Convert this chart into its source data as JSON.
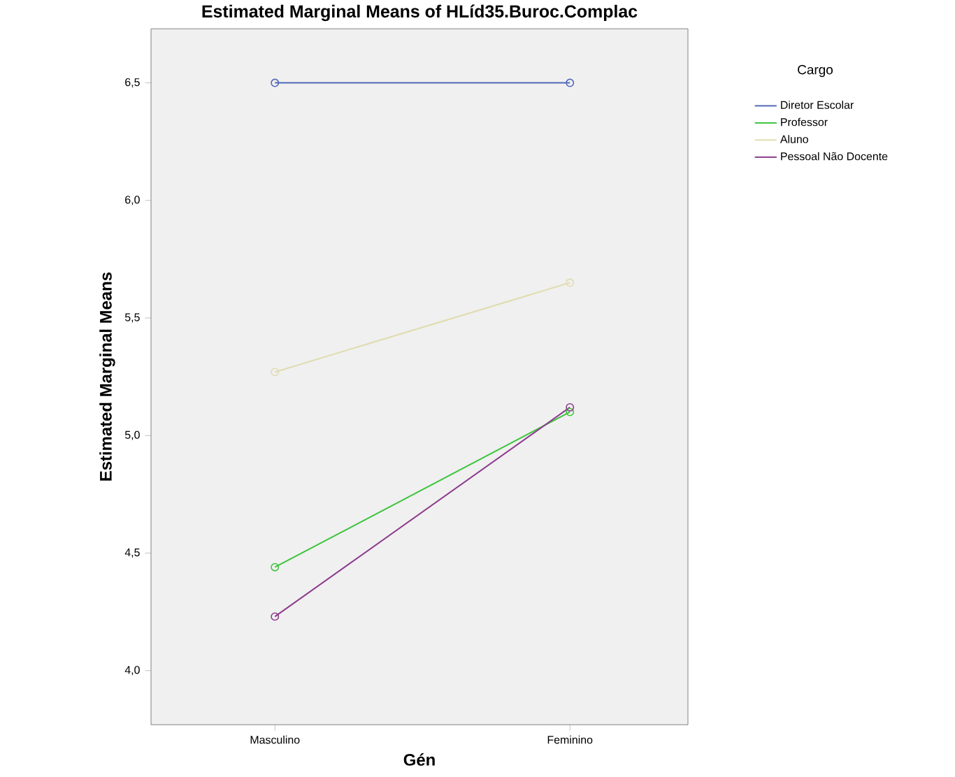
{
  "chart_data": {
    "type": "line",
    "title": "Estimated Marginal Means of HLíd35.Buroc.Complac",
    "xlabel": "Gén",
    "ylabel": "Estimated Marginal Means",
    "legend_title": "Cargo",
    "categories": [
      "Masculino",
      "Feminino"
    ],
    "series": [
      {
        "name": "Diretor Escolar",
        "color": "#5068b8",
        "values": [
          6.5,
          6.5
        ]
      },
      {
        "name": "Professor",
        "color": "#3cc43c",
        "values": [
          4.44,
          5.1
        ]
      },
      {
        "name": "Aluno",
        "color": "#e0dcb0",
        "values": [
          5.27,
          5.65
        ]
      },
      {
        "name": "Pessoal Não Docente",
        "color": "#8c3c8c",
        "values": [
          4.23,
          5.12
        ]
      }
    ],
    "ylim": [
      3.77,
      6.73
    ],
    "yticks": [
      {
        "value": 4.0,
        "label": "4,0"
      },
      {
        "value": 4.5,
        "label": "4,5"
      },
      {
        "value": 5.0,
        "label": "5,0"
      },
      {
        "value": 5.5,
        "label": "5,5"
      },
      {
        "value": 6.0,
        "label": "6,0"
      },
      {
        "value": 6.5,
        "label": "6,5"
      }
    ],
    "grid": false,
    "legend": "right",
    "marker": "circle",
    "line_style": "solid"
  }
}
